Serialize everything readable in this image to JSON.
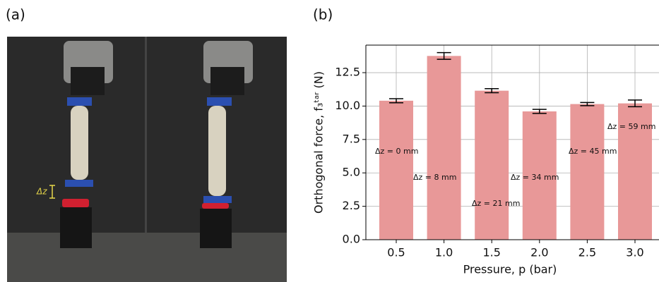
{
  "panel_a": {
    "label": "(a)",
    "annotation": "Δz"
  },
  "chart_data": {
    "type": "bar",
    "panel_label": "(b)",
    "xlabel": "Pressure, p (bar)",
    "ylabel": "Orthogonal force, f₃ᵗᵃʳ (N)",
    "categories": [
      "0.5",
      "1.0",
      "1.5",
      "2.0",
      "2.5",
      "3.0"
    ],
    "values": [
      10.4,
      13.75,
      11.15,
      9.6,
      10.15,
      10.2
    ],
    "errors": [
      0.15,
      0.25,
      0.15,
      0.15,
      0.12,
      0.25
    ],
    "color": "#e89898",
    "ylim": [
      0,
      14.56
    ],
    "yticks": [
      {
        "value": 0,
        "label": "0.0"
      },
      2.5,
      {
        "value": 5,
        "label": "5.0"
      },
      7.5,
      {
        "value": 10,
        "label": "10.0"
      },
      12.5
    ],
    "grid": true,
    "annotations": [
      "Δz = 0 mm",
      "Δz = 8 mm",
      "Δz = 21 mm",
      "Δz = 34 mm",
      "Δz = 45 mm",
      "Δz = 59 mm"
    ]
  }
}
